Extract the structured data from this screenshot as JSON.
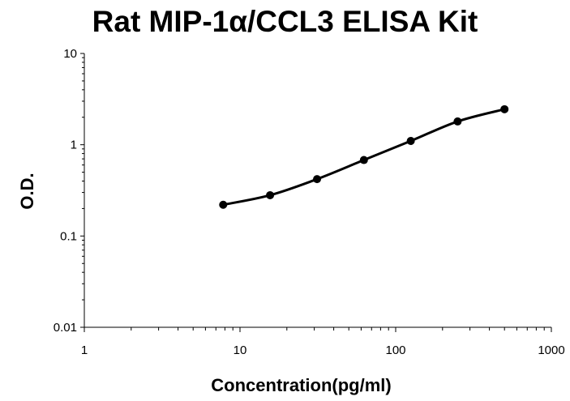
{
  "chart_data": {
    "type": "line",
    "title": "Rat MIP-1α/CCL3 ELISA Kit",
    "xlabel": "Concentration(pg/ml)",
    "ylabel": "O.D.",
    "x_scale": "log",
    "y_scale": "log",
    "xlim": [
      1,
      1000
    ],
    "ylim": [
      0.01,
      10
    ],
    "x_ticks": [
      "1",
      "10",
      "100",
      "1000"
    ],
    "y_ticks": [
      "0.01",
      "0.1",
      "1",
      "10"
    ],
    "grid": false,
    "legend": "none",
    "line_color": "#000000",
    "series": [
      {
        "x": [
          7.8,
          15.6,
          31.25,
          62.5,
          125,
          250,
          500
        ],
        "y": [
          0.22,
          0.28,
          0.42,
          0.68,
          1.1,
          1.8,
          2.45
        ]
      }
    ]
  }
}
